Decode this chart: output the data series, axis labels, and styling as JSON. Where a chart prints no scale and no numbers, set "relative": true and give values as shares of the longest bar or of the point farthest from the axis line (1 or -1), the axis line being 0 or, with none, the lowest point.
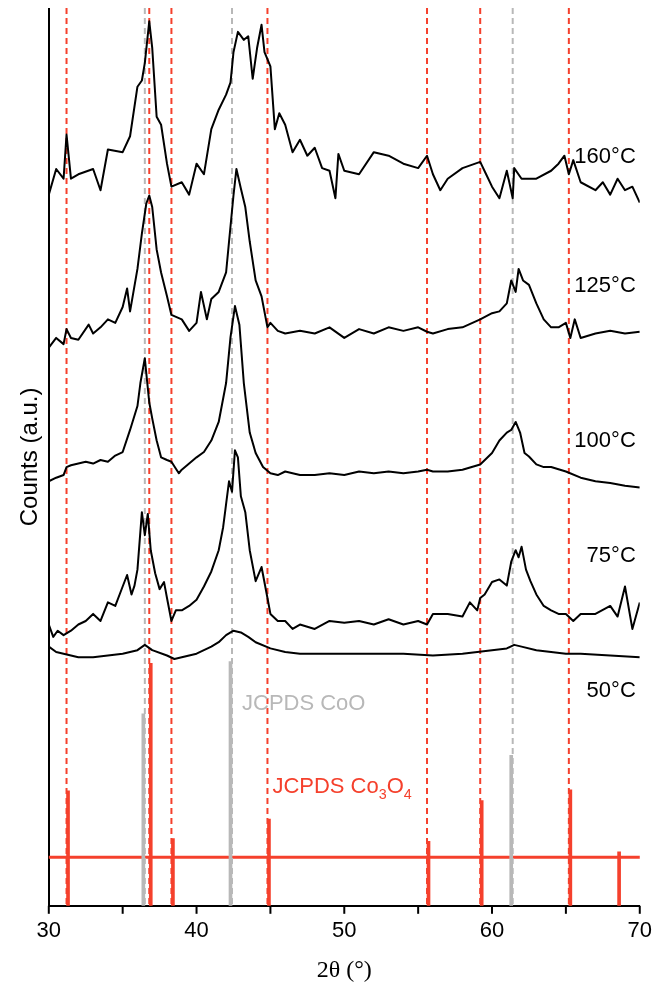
{
  "chart_data": {
    "type": "line",
    "relative": true,
    "xlabel": "2θ (°)",
    "ylabel": "Counts (a.u.)",
    "xlim": [
      30,
      70
    ],
    "xticks": [
      30,
      {
        "value": 35,
        "label": null
      },
      40,
      {
        "value": 45,
        "label": null
      },
      50,
      {
        "value": 55,
        "label": null
      },
      60,
      {
        "value": 65,
        "label": null
      },
      70
    ],
    "grid": false,
    "legend": false,
    "marker": "none",
    "line_style": "solid",
    "series": [
      {
        "name": "160°C",
        "color": "#000000",
        "x": [
          30,
          30.5,
          31,
          31.2,
          31.5,
          32,
          33,
          33.5,
          34,
          35,
          35.5,
          36,
          36.3,
          36.5,
          36.8,
          37,
          37.3,
          37.6,
          38,
          38.3,
          39,
          39.5,
          40,
          40.5,
          41,
          41.5,
          42,
          42.3,
          42.5,
          42.8,
          43.2,
          43.5,
          43.8,
          44.1,
          44.4,
          44.6,
          45,
          45.3,
          45.6,
          46,
          46.5,
          47,
          47.5,
          48,
          48.5,
          49,
          49.4,
          49.6,
          50,
          51,
          52,
          53,
          54,
          55,
          55.6,
          56,
          56.5,
          57,
          58,
          59.2,
          59.6,
          60,
          60.5,
          61,
          61.4,
          61.5,
          62,
          63,
          64,
          64.5,
          64.9,
          65.2,
          65.5,
          66,
          67,
          67.5,
          68,
          68.5,
          69,
          69.5,
          70
        ],
        "values": [
          0.804,
          0.833,
          0.822,
          0.872,
          0.822,
          0.827,
          0.833,
          0.809,
          0.855,
          0.852,
          0.87,
          0.926,
          0.933,
          0.953,
          1.0,
          0.97,
          0.892,
          0.883,
          0.839,
          0.813,
          0.818,
          0.804,
          0.839,
          0.827,
          0.878,
          0.9,
          0.917,
          0.931,
          0.965,
          0.988,
          0.979,
          0.983,
          0.935,
          0.97,
          0.996,
          0.965,
          0.949,
          0.878,
          0.896,
          0.883,
          0.852,
          0.866,
          0.848,
          0.857,
          0.834,
          0.831,
          0.8,
          0.85,
          0.831,
          0.827,
          0.852,
          0.848,
          0.839,
          0.834,
          0.848,
          0.827,
          0.809,
          0.822,
          0.834,
          0.841,
          0.827,
          0.813,
          0.8,
          0.831,
          0.8,
          0.834,
          0.822,
          0.822,
          0.831,
          0.839,
          0.848,
          0.827,
          0.843,
          0.818,
          0.809,
          0.818,
          0.804,
          0.822,
          0.809,
          0.813,
          0.795
        ]
      },
      {
        "name": "125°C",
        "color": "#000000",
        "x": [
          30,
          30.5,
          31,
          31.2,
          31.5,
          32,
          32.7,
          33,
          33.5,
          34,
          34.5,
          35,
          35.3,
          35.5,
          36,
          36.3,
          36.6,
          36.8,
          37,
          37.3,
          37.6,
          38,
          38.3,
          39,
          39.5,
          40,
          40.3,
          40.7,
          41,
          41.5,
          42,
          42.2,
          42.5,
          42.7,
          43,
          43.3,
          43.6,
          44,
          44.4,
          44.8,
          45,
          45.5,
          46,
          47,
          48,
          49,
          50,
          51,
          52,
          53,
          54,
          55,
          55.6,
          56,
          57,
          58,
          59.2,
          60,
          60.5,
          61,
          61.3,
          61.6,
          61.8,
          62.1,
          62.5,
          63,
          63.5,
          64,
          64.5,
          65,
          65.3,
          65.6,
          66,
          67,
          68,
          69,
          70
        ],
        "values": [
          0.631,
          0.642,
          0.635,
          0.652,
          0.642,
          0.64,
          0.657,
          0.647,
          0.654,
          0.663,
          0.659,
          0.677,
          0.698,
          0.672,
          0.72,
          0.76,
          0.794,
          0.803,
          0.79,
          0.742,
          0.716,
          0.689,
          0.668,
          0.663,
          0.65,
          0.659,
          0.694,
          0.663,
          0.686,
          0.694,
          0.716,
          0.751,
          0.803,
          0.833,
          0.811,
          0.79,
          0.751,
          0.707,
          0.689,
          0.654,
          0.659,
          0.65,
          0.647,
          0.65,
          0.647,
          0.654,
          0.642,
          0.652,
          0.647,
          0.654,
          0.65,
          0.654,
          0.649,
          0.647,
          0.652,
          0.654,
          0.663,
          0.67,
          0.672,
          0.681,
          0.707,
          0.694,
          0.72,
          0.707,
          0.702,
          0.681,
          0.663,
          0.654,
          0.654,
          0.659,
          0.642,
          0.663,
          0.642,
          0.647,
          0.65,
          0.647,
          0.649
        ]
      },
      {
        "name": "100°C",
        "color": "#000000",
        "x": [
          30,
          30.5,
          31,
          31.2,
          31.5,
          32,
          32.5,
          33,
          33.5,
          34,
          34.5,
          35,
          35.5,
          36,
          36.2,
          36.5,
          36.6,
          36.8,
          37,
          37.3,
          37.6,
          38,
          38.3,
          38.8,
          39,
          39.5,
          40,
          40.5,
          41,
          41.5,
          42,
          42.3,
          42.6,
          42.9,
          43.2,
          43.6,
          44,
          44.5,
          45,
          45.5,
          46,
          47,
          48,
          49,
          50,
          51,
          52,
          53,
          54,
          55,
          55.6,
          56,
          57,
          58,
          59.2,
          60,
          60.5,
          61,
          61.3,
          61.6,
          61.9,
          62.2,
          62.5,
          63,
          63.5,
          64,
          65,
          66,
          67,
          68,
          69,
          70
        ],
        "values": [
          0.48,
          0.484,
          0.487,
          0.496,
          0.498,
          0.5,
          0.502,
          0.5,
          0.504,
          0.502,
          0.509,
          0.513,
          0.538,
          0.565,
          0.591,
          0.619,
          0.602,
          0.569,
          0.551,
          0.526,
          0.507,
          0.504,
          0.502,
          0.489,
          0.493,
          0.5,
          0.507,
          0.513,
          0.526,
          0.547,
          0.591,
          0.643,
          0.678,
          0.657,
          0.591,
          0.535,
          0.512,
          0.496,
          0.489,
          0.487,
          0.491,
          0.487,
          0.487,
          0.489,
          0.487,
          0.491,
          0.489,
          0.491,
          0.489,
          0.491,
          0.493,
          0.491,
          0.491,
          0.493,
          0.499,
          0.512,
          0.526,
          0.535,
          0.538,
          0.547,
          0.535,
          0.512,
          0.508,
          0.499,
          0.496,
          0.496,
          0.491,
          0.484,
          0.48,
          0.478,
          0.475,
          0.473
        ]
      },
      {
        "name": "75°C",
        "color": "#000000",
        "x": [
          30,
          30.3,
          30.6,
          31,
          31.5,
          32,
          32.5,
          33,
          33.5,
          34,
          34.5,
          35,
          35.3,
          35.6,
          35.8,
          36,
          36.3,
          36.5,
          36.7,
          36.9,
          37.2,
          37.5,
          37.8,
          38,
          38.3,
          38.6,
          39,
          39.5,
          40,
          40.5,
          41,
          41.5,
          41.8,
          42,
          42.2,
          42.4,
          42.6,
          42.8,
          43,
          43.3,
          43.6,
          44,
          44.4,
          44.8,
          45,
          45.5,
          46,
          46.5,
          47,
          48,
          49,
          50,
          51,
          52,
          53,
          54,
          55,
          55.6,
          56,
          57,
          58,
          58.5,
          59,
          59.2,
          59.5,
          60,
          60.5,
          61,
          61.3,
          61.6,
          61.8,
          62,
          62.3,
          62.6,
          63,
          63.5,
          64,
          64.5,
          65,
          65.5,
          66,
          67,
          68,
          68.5,
          69,
          69.5,
          70
        ],
        "values": [
          0.318,
          0.304,
          0.311,
          0.306,
          0.311,
          0.318,
          0.322,
          0.33,
          0.322,
          0.343,
          0.339,
          0.361,
          0.374,
          0.352,
          0.362,
          0.38,
          0.445,
          0.419,
          0.443,
          0.402,
          0.376,
          0.358,
          0.366,
          0.348,
          0.322,
          0.334,
          0.334,
          0.339,
          0.346,
          0.361,
          0.378,
          0.402,
          0.428,
          0.454,
          0.48,
          0.468,
          0.515,
          0.507,
          0.463,
          0.445,
          0.402,
          0.367,
          0.383,
          0.348,
          0.33,
          0.322,
          0.322,
          0.313,
          0.318,
          0.313,
          0.322,
          0.32,
          0.322,
          0.318,
          0.324,
          0.318,
          0.322,
          0.318,
          0.33,
          0.33,
          0.327,
          0.343,
          0.334,
          0.348,
          0.352,
          0.366,
          0.369,
          0.362,
          0.389,
          0.402,
          0.394,
          0.406,
          0.38,
          0.367,
          0.352,
          0.339,
          0.334,
          0.33,
          0.33,
          0.322,
          0.33,
          0.33,
          0.339,
          0.327,
          0.361,
          0.313,
          0.343
        ]
      },
      {
        "name": "50°C",
        "color": "#000000",
        "x": [
          30,
          30.5,
          31,
          32,
          33,
          34,
          35,
          36,
          36.5,
          37,
          38,
          38.5,
          39,
          40,
          41,
          41.5,
          42,
          42.5,
          43,
          43.5,
          44,
          45,
          46,
          47,
          48,
          50,
          52,
          54,
          56,
          58,
          60,
          61,
          61.5,
          62,
          63,
          64,
          65,
          66,
          68,
          70
        ],
        "values": [
          0.293,
          0.287,
          0.285,
          0.281,
          0.281,
          0.283,
          0.285,
          0.289,
          0.295,
          0.289,
          0.283,
          0.279,
          0.281,
          0.285,
          0.293,
          0.298,
          0.306,
          0.311,
          0.309,
          0.304,
          0.298,
          0.291,
          0.287,
          0.285,
          0.285,
          0.285,
          0.285,
          0.285,
          0.283,
          0.285,
          0.289,
          0.291,
          0.295,
          0.293,
          0.289,
          0.287,
          0.285,
          0.285,
          0.283,
          0.281
        ]
      },
      {
        "name": "JCPDS CoO",
        "type": "bar",
        "color": "#b8b8b8",
        "x": [
          36.5,
          42.4,
          61.4
        ],
        "values": [
          0.217,
          0.276,
          0.17
        ]
      },
      {
        "name": "JCPDS Co$_{3}$O$_{4}$",
        "type": "bar",
        "color": "#f5402c",
        "x": [
          31.2,
          36.8,
          38.3,
          44.8,
          55.6,
          59.2,
          65.2,
          68.5
        ],
        "values": [
          0.13,
          0.274,
          0.076,
          0.098,
          0.073,
          0.119,
          0.131,
          0.061
        ]
      }
    ],
    "ref_lines": [
      {
        "axis": "y",
        "value": 0.055,
        "color": "#f5402c",
        "line_style": "solid"
      },
      {
        "axis": "x",
        "value": 31.2,
        "color": "#f5402c",
        "line_style": "dashed"
      },
      {
        "axis": "x",
        "value": 36.8,
        "color": "#f5402c",
        "line_style": "dashed"
      },
      {
        "axis": "x",
        "value": 38.3,
        "color": "#f5402c",
        "line_style": "dashed"
      },
      {
        "axis": "x",
        "value": 44.8,
        "color": "#f5402c",
        "line_style": "dashed"
      },
      {
        "axis": "x",
        "value": 55.6,
        "color": "#f5402c",
        "line_style": "dashed"
      },
      {
        "axis": "x",
        "value": 59.2,
        "color": "#f5402c",
        "line_style": "dashed"
      },
      {
        "axis": "x",
        "value": 65.2,
        "color": "#f5402c",
        "line_style": "dashed"
      },
      {
        "axis": "x",
        "value": 36.5,
        "color": "#b8b8b8",
        "line_style": "dashed"
      },
      {
        "axis": "x",
        "value": 42.4,
        "color": "#b8b8b8",
        "line_style": "dashed"
      },
      {
        "axis": "x",
        "value": 61.4,
        "color": "#b8b8b8",
        "line_style": "dashed"
      }
    ]
  }
}
